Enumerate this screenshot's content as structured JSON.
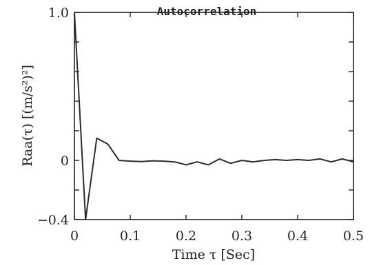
{
  "chart_data": {
    "type": "line",
    "title": "Autocorrelation",
    "xlabel": "Time τ [Sec]",
    "ylabel": "Raa(τ)   [(m/s²)²]",
    "xlim": [
      0,
      0.5
    ],
    "ylim": [
      -0.4,
      1.0
    ],
    "grid": false,
    "x_ticks": [
      {
        "value": 0,
        "label": "0"
      },
      {
        "value": 0.1,
        "label": "0.1"
      },
      {
        "value": 0.2,
        "label": "0.2"
      },
      {
        "value": 0.3,
        "label": "0.3"
      },
      {
        "value": 0.4,
        "label": "0.4"
      },
      {
        "value": 0.5,
        "label": "0.5"
      }
    ],
    "y_ticks": [
      {
        "value": 1.0,
        "label": "1.0"
      },
      {
        "value": 0,
        "label": "0"
      },
      {
        "value": -0.4,
        "label": "−0.4"
      }
    ],
    "y_minor_ticks": [
      0.8,
      0.6,
      0.4,
      0.2,
      -0.2
    ],
    "series": [
      {
        "x": [
          0,
          0.02,
          0.04,
          0.06,
          0.08,
          0.1,
          0.12,
          0.14,
          0.16,
          0.18,
          0.2,
          0.22,
          0.24,
          0.26,
          0.28,
          0.3,
          0.32,
          0.34,
          0.36,
          0.38,
          0.4,
          0.42,
          0.44,
          0.46,
          0.48,
          0.5
        ],
        "y": [
          1.0,
          -0.4,
          0.15,
          0.11,
          0.0,
          -0.005,
          -0.008,
          -0.003,
          -0.005,
          -0.01,
          -0.03,
          -0.01,
          -0.03,
          0.01,
          -0.02,
          0.0,
          -0.01,
          0.0,
          0.005,
          0.0,
          0.005,
          0.0,
          0.01,
          -0.01,
          0.01,
          -0.01
        ]
      }
    ]
  }
}
